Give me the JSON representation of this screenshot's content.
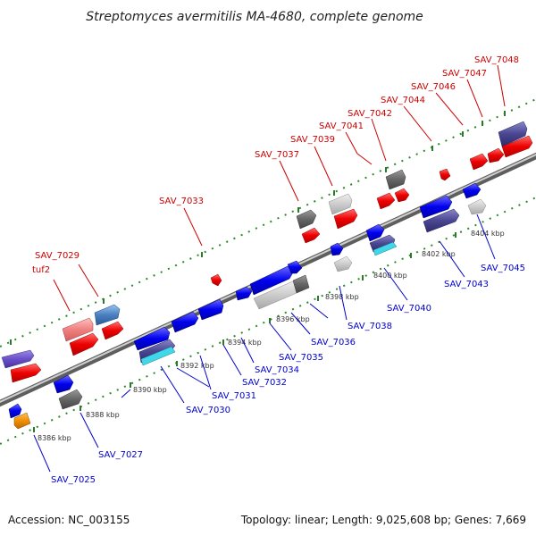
{
  "title": "Streptomyces avermitilis MA-4680, complete genome",
  "footer": {
    "accession": "Accession: NC_003155",
    "summary": "Topology: linear; Length: 9,025,608 bp; Genes: 7,669"
  },
  "scale_labels": [
    "8386 kbp",
    "8388 kbp",
    "8390 kbp",
    "8392 kbp",
    "8394 kbp",
    "8396 kbp",
    "8398 kbp",
    "8400 kbp",
    "8402 kbp",
    "8404 kbp"
  ],
  "top_labels": [
    "tuf2",
    "SAV_7029",
    "SAV_7033",
    "SAV_7037",
    "SAV_7039",
    "SAV_7041",
    "SAV_7042",
    "SAV_7044",
    "SAV_7046",
    "SAV_7047",
    "SAV_7048"
  ],
  "bottom_labels": [
    "SAV_7025",
    "SAV_7027",
    "SAV_7030",
    "SAV_7031",
    "SAV_7032",
    "SAV_7034",
    "SAV_7035",
    "SAV_7036",
    "SAV_7038",
    "SAV_7040",
    "SAV_7043",
    "SAV_7045"
  ],
  "colors": {
    "forward_genes": "#ff0000",
    "reverse_genes": "#0000ff",
    "backbone": "#999999",
    "top_labels": "#cc0000",
    "bottom_labels": "#0000cc",
    "tick_marks": "#228b22"
  }
}
